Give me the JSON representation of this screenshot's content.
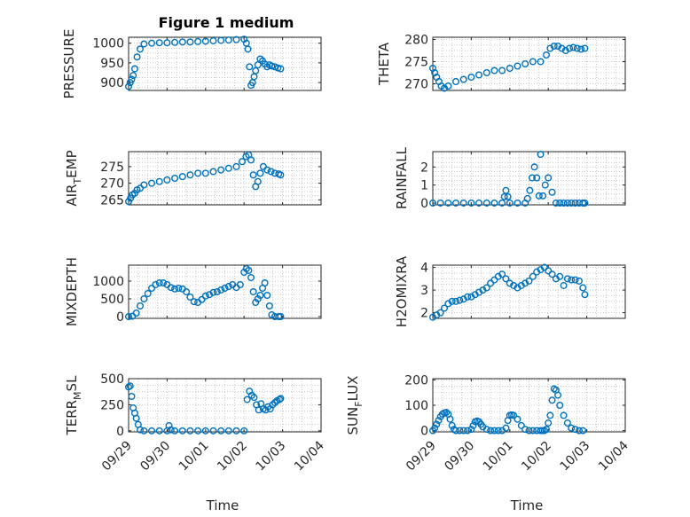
{
  "figure": {
    "title": "Figure 1 medium",
    "xlabel": "Time"
  },
  "x_ticks": [
    "09/29",
    "09/30",
    "10/01",
    "10/02",
    "10/03",
    "10/04"
  ],
  "colors": {
    "marker": "#0072bd",
    "axis": "#262626",
    "grid": "#bcbcbc"
  },
  "chart_data": [
    {
      "type": "scatter",
      "ylabel": "PRESSURE",
      "ylim": [
        880,
        1015
      ],
      "yticks": [
        900,
        950,
        1000
      ],
      "xlim": [
        "09/29",
        "10/04"
      ],
      "grid": true,
      "x": [
        0.0,
        0.04,
        0.08,
        0.12,
        0.16,
        0.22,
        0.3,
        0.4,
        0.6,
        0.8,
        1.0,
        1.2,
        1.4,
        1.6,
        1.8,
        2.0,
        2.2,
        2.4,
        2.6,
        2.8,
        3.0,
        3.06,
        3.1,
        3.14,
        3.18,
        3.22,
        3.26,
        3.3,
        3.36,
        3.42,
        3.48,
        3.54,
        3.6,
        3.66,
        3.72,
        3.8,
        3.88,
        3.95
      ],
      "y": [
        890,
        900,
        908,
        918,
        935,
        965,
        985,
        998,
        1000,
        1001,
        1001,
        1002,
        1003,
        1003,
        1004,
        1005,
        1006,
        1007,
        1008,
        1009,
        1010,
        1000,
        985,
        940,
        893,
        900,
        915,
        930,
        945,
        960,
        955,
        947,
        940,
        945,
        942,
        940,
        937,
        935
      ]
    },
    {
      "type": "scatter",
      "ylabel": "THETA",
      "ylim": [
        268.5,
        280.5
      ],
      "yticks": [
        270,
        275,
        280
      ],
      "xlim": [
        "09/29",
        "10/04"
      ],
      "grid": true,
      "x": [
        0.0,
        0.05,
        0.1,
        0.16,
        0.22,
        0.3,
        0.4,
        0.6,
        0.8,
        1.0,
        1.2,
        1.4,
        1.6,
        1.8,
        2.0,
        2.2,
        2.4,
        2.6,
        2.8,
        2.95,
        3.05,
        3.15,
        3.25,
        3.35,
        3.45,
        3.55,
        3.65,
        3.75,
        3.85,
        3.95
      ],
      "y": [
        273.5,
        272.5,
        271.5,
        270.5,
        269.5,
        269.0,
        269.5,
        270.5,
        271.0,
        271.5,
        272.0,
        272.5,
        273.0,
        273.0,
        273.5,
        274.0,
        274.5,
        275.0,
        275.0,
        276.5,
        278.0,
        278.5,
        278.5,
        278.0,
        277.5,
        278.0,
        278.2,
        278.0,
        277.8,
        278.0
      ]
    },
    {
      "type": "scatter",
      "ylabel": "AIRTEMP",
      "ylim": [
        263.5,
        279.5
      ],
      "yticks": [
        265,
        270,
        275
      ],
      "xlim": [
        "09/29",
        "10/04"
      ],
      "grid": true,
      "x": [
        0.0,
        0.05,
        0.1,
        0.16,
        0.22,
        0.3,
        0.4,
        0.6,
        0.8,
        1.0,
        1.2,
        1.4,
        1.6,
        1.8,
        2.0,
        2.2,
        2.4,
        2.6,
        2.8,
        2.95,
        3.05,
        3.12,
        3.18,
        3.24,
        3.3,
        3.36,
        3.42,
        3.5,
        3.6,
        3.7,
        3.8,
        3.9,
        3.95
      ],
      "y": [
        264.5,
        265.5,
        266.5,
        267.0,
        268.0,
        268.5,
        269.5,
        270.0,
        270.5,
        271.0,
        271.5,
        272.0,
        272.5,
        273.0,
        273.0,
        273.5,
        274.0,
        274.5,
        275.0,
        276.5,
        278.0,
        278.5,
        277.0,
        272.5,
        269.0,
        270.5,
        273.0,
        275.0,
        274.0,
        273.5,
        273.0,
        272.8,
        272.5
      ]
    },
    {
      "type": "scatter",
      "ylabel": "RAINFALL",
      "ylim": [
        -0.1,
        2.85
      ],
      "yticks": [
        0,
        1,
        2
      ],
      "xlim": [
        "09/29",
        "10/04"
      ],
      "grid": true,
      "x": [
        0.0,
        0.2,
        0.4,
        0.6,
        0.8,
        1.0,
        1.2,
        1.4,
        1.6,
        1.8,
        1.86,
        1.9,
        1.95,
        2.0,
        2.2,
        2.4,
        2.46,
        2.52,
        2.58,
        2.64,
        2.7,
        2.76,
        2.8,
        2.86,
        2.92,
        3.0,
        3.1,
        3.2,
        3.3,
        3.4,
        3.5,
        3.6,
        3.7,
        3.8,
        3.9,
        3.95
      ],
      "y": [
        0,
        0,
        0,
        0,
        0,
        0,
        0,
        0,
        0,
        0,
        0.35,
        0.7,
        0.35,
        0,
        0,
        0,
        0.25,
        0.7,
        1.4,
        2.0,
        1.4,
        0.4,
        2.7,
        0.4,
        1.0,
        1.4,
        0.6,
        0,
        0,
        0,
        0,
        0,
        0,
        0,
        0,
        0
      ]
    },
    {
      "type": "scatter",
      "ylabel": "MIXDEPTH",
      "ylim": [
        -50,
        1450
      ],
      "yticks": [
        0,
        500,
        1000
      ],
      "xlim": [
        "09/29",
        "10/04"
      ],
      "grid": true,
      "x": [
        0.0,
        0.1,
        0.2,
        0.3,
        0.4,
        0.5,
        0.6,
        0.7,
        0.8,
        0.9,
        1.0,
        1.1,
        1.2,
        1.3,
        1.4,
        1.5,
        1.6,
        1.7,
        1.8,
        1.9,
        2.0,
        2.1,
        2.2,
        2.3,
        2.4,
        2.5,
        2.6,
        2.7,
        2.8,
        2.9,
        3.0,
        3.06,
        3.12,
        3.18,
        3.24,
        3.3,
        3.36,
        3.42,
        3.48,
        3.54,
        3.6,
        3.66,
        3.72,
        3.8,
        3.9,
        3.95
      ],
      "y": [
        0,
        10,
        100,
        300,
        500,
        650,
        800,
        900,
        950,
        950,
        900,
        820,
        780,
        800,
        780,
        700,
        550,
        420,
        400,
        480,
        580,
        620,
        680,
        700,
        750,
        800,
        850,
        900,
        820,
        900,
        1250,
        1350,
        1300,
        1100,
        700,
        400,
        500,
        600,
        800,
        950,
        600,
        300,
        50,
        0,
        0,
        0
      ]
    },
    {
      "type": "scatter",
      "ylabel": "H2OMIXRA",
      "ylim": [
        1.75,
        4.1
      ],
      "yticks": [
        2,
        3,
        4
      ],
      "xlim": [
        "09/29",
        "10/04"
      ],
      "grid": true,
      "x": [
        0.0,
        0.1,
        0.2,
        0.3,
        0.4,
        0.5,
        0.6,
        0.7,
        0.8,
        0.9,
        1.0,
        1.1,
        1.2,
        1.3,
        1.4,
        1.5,
        1.6,
        1.7,
        1.8,
        1.9,
        2.0,
        2.1,
        2.2,
        2.3,
        2.4,
        2.5,
        2.6,
        2.7,
        2.8,
        2.9,
        3.0,
        3.1,
        3.2,
        3.3,
        3.4,
        3.5,
        3.6,
        3.7,
        3.8,
        3.9,
        3.95
      ],
      "y": [
        1.8,
        1.9,
        2.0,
        2.2,
        2.4,
        2.5,
        2.5,
        2.55,
        2.6,
        2.7,
        2.7,
        2.8,
        2.9,
        3.0,
        3.1,
        3.3,
        3.45,
        3.6,
        3.7,
        3.5,
        3.3,
        3.2,
        3.1,
        3.2,
        3.3,
        3.4,
        3.6,
        3.8,
        3.9,
        4.0,
        3.85,
        3.7,
        3.5,
        3.6,
        3.2,
        3.5,
        3.45,
        3.45,
        3.4,
        3.1,
        2.8
      ]
    },
    {
      "type": "scatter",
      "ylabel": "TERRMSL",
      "ylim": [
        -10,
        500
      ],
      "yticks": [
        0,
        250,
        500
      ],
      "xlim": [
        "09/29",
        "10/04"
      ],
      "grid": true,
      "x": [
        0.0,
        0.04,
        0.08,
        0.12,
        0.16,
        0.2,
        0.25,
        0.3,
        0.4,
        0.6,
        0.8,
        1.0,
        1.05,
        1.1,
        1.2,
        1.4,
        1.6,
        1.8,
        2.0,
        2.2,
        2.4,
        2.6,
        2.8,
        3.0,
        3.08,
        3.14,
        3.2,
        3.26,
        3.32,
        3.38,
        3.44,
        3.5,
        3.56,
        3.62,
        3.68,
        3.74,
        3.8,
        3.86,
        3.92,
        3.95
      ],
      "y": [
        420,
        430,
        330,
        220,
        170,
        120,
        60,
        10,
        0,
        0,
        0,
        0,
        50,
        10,
        0,
        0,
        0,
        0,
        0,
        0,
        0,
        0,
        0,
        0,
        300,
        380,
        340,
        320,
        250,
        200,
        260,
        210,
        200,
        230,
        210,
        250,
        270,
        290,
        300,
        310
      ]
    },
    {
      "type": "scatter",
      "ylabel": "SUNFLUX",
      "ylim": [
        -5,
        205
      ],
      "yticks": [
        0,
        100,
        200
      ],
      "xlim": [
        "09/29",
        "10/04"
      ],
      "grid": true,
      "x": [
        0.0,
        0.05,
        0.1,
        0.15,
        0.2,
        0.25,
        0.3,
        0.35,
        0.4,
        0.45,
        0.5,
        0.55,
        0.6,
        0.7,
        0.8,
        0.9,
        1.0,
        1.05,
        1.1,
        1.15,
        1.2,
        1.25,
        1.3,
        1.4,
        1.5,
        1.6,
        1.7,
        1.8,
        1.9,
        1.95,
        2.0,
        2.05,
        2.1,
        2.2,
        2.3,
        2.4,
        2.5,
        2.6,
        2.7,
        2.8,
        2.85,
        2.9,
        2.95,
        3.0,
        3.05,
        3.1,
        3.15,
        3.2,
        3.25,
        3.3,
        3.4,
        3.5,
        3.6,
        3.7,
        3.8,
        3.9
      ],
      "y": [
        0,
        10,
        25,
        40,
        55,
        65,
        70,
        72,
        65,
        45,
        20,
        5,
        0,
        0,
        0,
        0,
        5,
        20,
        35,
        38,
        35,
        25,
        15,
        5,
        0,
        0,
        0,
        0,
        10,
        40,
        60,
        62,
        60,
        45,
        20,
        5,
        0,
        0,
        0,
        0,
        0,
        0,
        5,
        30,
        60,
        120,
        165,
        160,
        140,
        100,
        60,
        30,
        10,
        5,
        0,
        0
      ]
    }
  ]
}
